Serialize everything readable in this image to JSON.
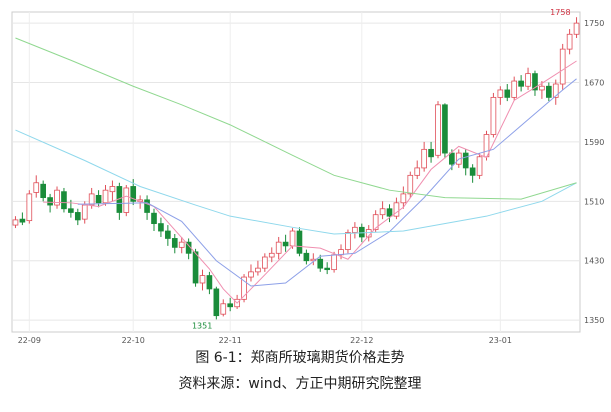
{
  "chart_data": {
    "type": "candlestick",
    "caption": "图 6-1：郑商所玻璃期货价格走势",
    "source": "资料来源：wind、方正中期研究院整理",
    "categories": [
      null,
      null,
      "22-09",
      null,
      null,
      null,
      null,
      null,
      null,
      null,
      null,
      null,
      null,
      null,
      null,
      null,
      null,
      "22-10",
      null,
      null,
      null,
      null,
      null,
      null,
      null,
      null,
      null,
      null,
      null,
      null,
      null,
      "22-11",
      null,
      null,
      null,
      null,
      null,
      null,
      null,
      null,
      null,
      null,
      null,
      null,
      null,
      null,
      null,
      null,
      null,
      null,
      "22-12",
      null,
      null,
      null,
      null,
      null,
      null,
      null,
      null,
      null,
      null,
      null,
      null,
      null,
      null,
      null,
      null,
      null,
      null,
      null,
      "23-01",
      null,
      null,
      null,
      null,
      null,
      null,
      null,
      null,
      null,
      null,
      null
    ],
    "open": [
      1478,
      1486,
      1484,
      1522,
      1533,
      1515,
      1505,
      1523,
      1500,
      1495,
      1486,
      1505,
      1518,
      1508,
      1523,
      1530,
      1495,
      1530,
      1510,
      1512,
      1494,
      1480,
      1470,
      1460,
      1448,
      1455,
      1442,
      1400,
      1410,
      1392,
      1358,
      1372,
      1368,
      1378,
      1408,
      1415,
      1420,
      1435,
      1440,
      1455,
      1450,
      1470,
      1440,
      1430,
      1432,
      1420,
      1418,
      1438,
      1445,
      1468,
      1475,
      1462,
      1472,
      1492,
      1500,
      1490,
      1508,
      1520,
      1545,
      1555,
      1580,
      1572,
      1640,
      1575,
      1560,
      1575,
      1555,
      1545,
      1570,
      1600,
      1650,
      1660,
      1650,
      1672,
      1665,
      1682,
      1660,
      1665,
      1650,
      1668,
      1715,
      1735
    ],
    "high": [
      1490,
      1495,
      1525,
      1545,
      1538,
      1520,
      1530,
      1528,
      1512,
      1500,
      1510,
      1528,
      1525,
      1532,
      1538,
      1535,
      1532,
      1540,
      1518,
      1518,
      1500,
      1488,
      1478,
      1466,
      1462,
      1460,
      1446,
      1418,
      1415,
      1395,
      1378,
      1380,
      1384,
      1412,
      1425,
      1430,
      1440,
      1448,
      1462,
      1465,
      1474,
      1475,
      1445,
      1440,
      1438,
      1428,
      1442,
      1452,
      1472,
      1482,
      1480,
      1478,
      1498,
      1510,
      1506,
      1515,
      1530,
      1550,
      1565,
      1590,
      1590,
      1645,
      1642,
      1580,
      1580,
      1580,
      1560,
      1575,
      1605,
      1656,
      1665,
      1668,
      1678,
      1680,
      1690,
      1686,
      1672,
      1670,
      1674,
      1722,
      1742,
      1758
    ],
    "low": [
      1474,
      1478,
      1480,
      1515,
      1510,
      1495,
      1500,
      1495,
      1488,
      1478,
      1480,
      1500,
      1502,
      1504,
      1510,
      1485,
      1490,
      1505,
      1500,
      1485,
      1470,
      1462,
      1450,
      1440,
      1440,
      1432,
      1395,
      1390,
      1385,
      1351,
      1355,
      1362,
      1365,
      1374,
      1402,
      1410,
      1415,
      1428,
      1432,
      1442,
      1446,
      1436,
      1425,
      1424,
      1415,
      1412,
      1414,
      1432,
      1440,
      1460,
      1455,
      1456,
      1468,
      1486,
      1482,
      1486,
      1500,
      1515,
      1540,
      1550,
      1562,
      1568,
      1568,
      1552,
      1555,
      1545,
      1535,
      1540,
      1565,
      1596,
      1640,
      1645,
      1646,
      1658,
      1660,
      1652,
      1648,
      1645,
      1640,
      1660,
      1708,
      1730
    ],
    "close": [
      1485,
      1482,
      1520,
      1535,
      1515,
      1505,
      1525,
      1500,
      1495,
      1485,
      1505,
      1520,
      1508,
      1525,
      1530,
      1495,
      1528,
      1510,
      1512,
      1495,
      1480,
      1470,
      1460,
      1448,
      1455,
      1440,
      1400,
      1410,
      1392,
      1356,
      1372,
      1368,
      1378,
      1408,
      1415,
      1420,
      1435,
      1440,
      1455,
      1450,
      1470,
      1440,
      1430,
      1432,
      1420,
      1418,
      1438,
      1445,
      1468,
      1475,
      1462,
      1472,
      1492,
      1500,
      1490,
      1508,
      1520,
      1545,
      1555,
      1580,
      1570,
      1640,
      1575,
      1560,
      1575,
      1555,
      1545,
      1570,
      1600,
      1650,
      1660,
      1650,
      1672,
      1665,
      1682,
      1660,
      1665,
      1650,
      1668,
      1715,
      1735,
      1750
    ],
    "up_color": "#e0505a",
    "down_color": "#1a8c3a",
    "series": [
      {
        "color": "#f08fb0",
        "x": [
          4,
          8,
          12,
          16,
          20,
          24,
          28,
          30,
          32,
          36,
          40,
          44,
          48,
          52,
          56,
          60,
          64,
          68,
          72,
          76,
          81
        ],
        "values": [
          1509,
          1508,
          1503,
          1517,
          1503,
          1461,
          1419,
          1392,
          1373,
          1411,
          1450,
          1447,
          1432,
          1474,
          1502,
          1553,
          1584,
          1569,
          1646,
          1669,
          1699
        ]
      },
      {
        "color": "#8da0e8",
        "x": [
          9,
          14,
          19,
          24,
          29,
          34,
          39,
          44,
          49,
          54,
          59,
          64,
          69,
          74,
          79,
          81
        ],
        "values": [
          1506,
          1507,
          1508,
          1483,
          1430,
          1396,
          1400,
          1436,
          1440,
          1469,
          1515,
          1567,
          1580,
          1620,
          1660,
          1675
        ]
      },
      {
        "color": "#8fd8ec",
        "x": [
          0,
          10,
          18,
          26,
          31,
          40,
          46,
          56,
          68,
          76,
          81
        ],
        "values": [
          1606,
          1565,
          1530,
          1505,
          1490,
          1475,
          1466,
          1470,
          1490,
          1510,
          1535
        ]
      },
      {
        "color": "#90d890",
        "x": [
          0,
          8,
          17,
          24,
          31,
          40,
          46,
          54,
          62,
          73,
          81
        ],
        "values": [
          1730,
          1700,
          1665,
          1640,
          1613,
          1572,
          1545,
          1525,
          1515,
          1513,
          1535
        ]
      }
    ],
    "ylim": [
      1334,
      1765
    ],
    "yticks": [
      1350,
      1430,
      1510,
      1590,
      1670,
      1750
    ],
    "grid": true
  }
}
